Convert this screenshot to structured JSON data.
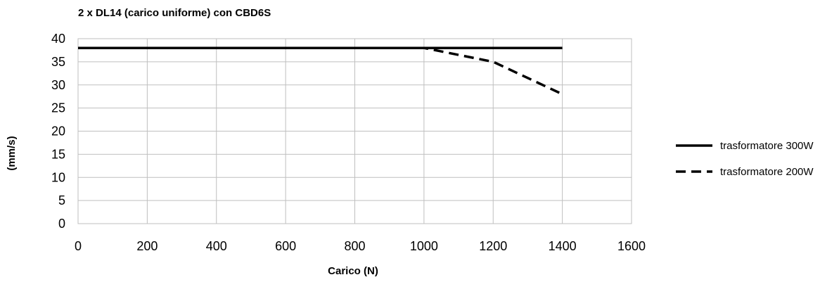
{
  "chart_data": {
    "type": "line",
    "title": "2 x DL14 (carico uniforme) con CBD6S",
    "xlabel": "Carico (N)",
    "ylabel": "(mm/s)",
    "xlim": [
      0,
      1600
    ],
    "ylim": [
      0,
      40
    ],
    "x_ticks": [
      0,
      200,
      400,
      600,
      800,
      1000,
      1200,
      1400,
      1600
    ],
    "y_ticks": [
      0,
      5,
      10,
      15,
      20,
      25,
      30,
      35,
      40
    ],
    "grid": true,
    "legend_position": "right",
    "series": [
      {
        "name": "trasformatore 300W",
        "style": "solid",
        "color": "#000000",
        "x": [
          0,
          200,
          400,
          600,
          800,
          1000,
          1200,
          1400
        ],
        "y": [
          38,
          38,
          38,
          38,
          38,
          38,
          38,
          38
        ]
      },
      {
        "name": "trasformatore 200W",
        "style": "dashed",
        "color": "#000000",
        "x": [
          0,
          200,
          400,
          600,
          800,
          1000,
          1200,
          1400
        ],
        "y": [
          38,
          38,
          38,
          38,
          38,
          38,
          35,
          28
        ]
      }
    ]
  }
}
